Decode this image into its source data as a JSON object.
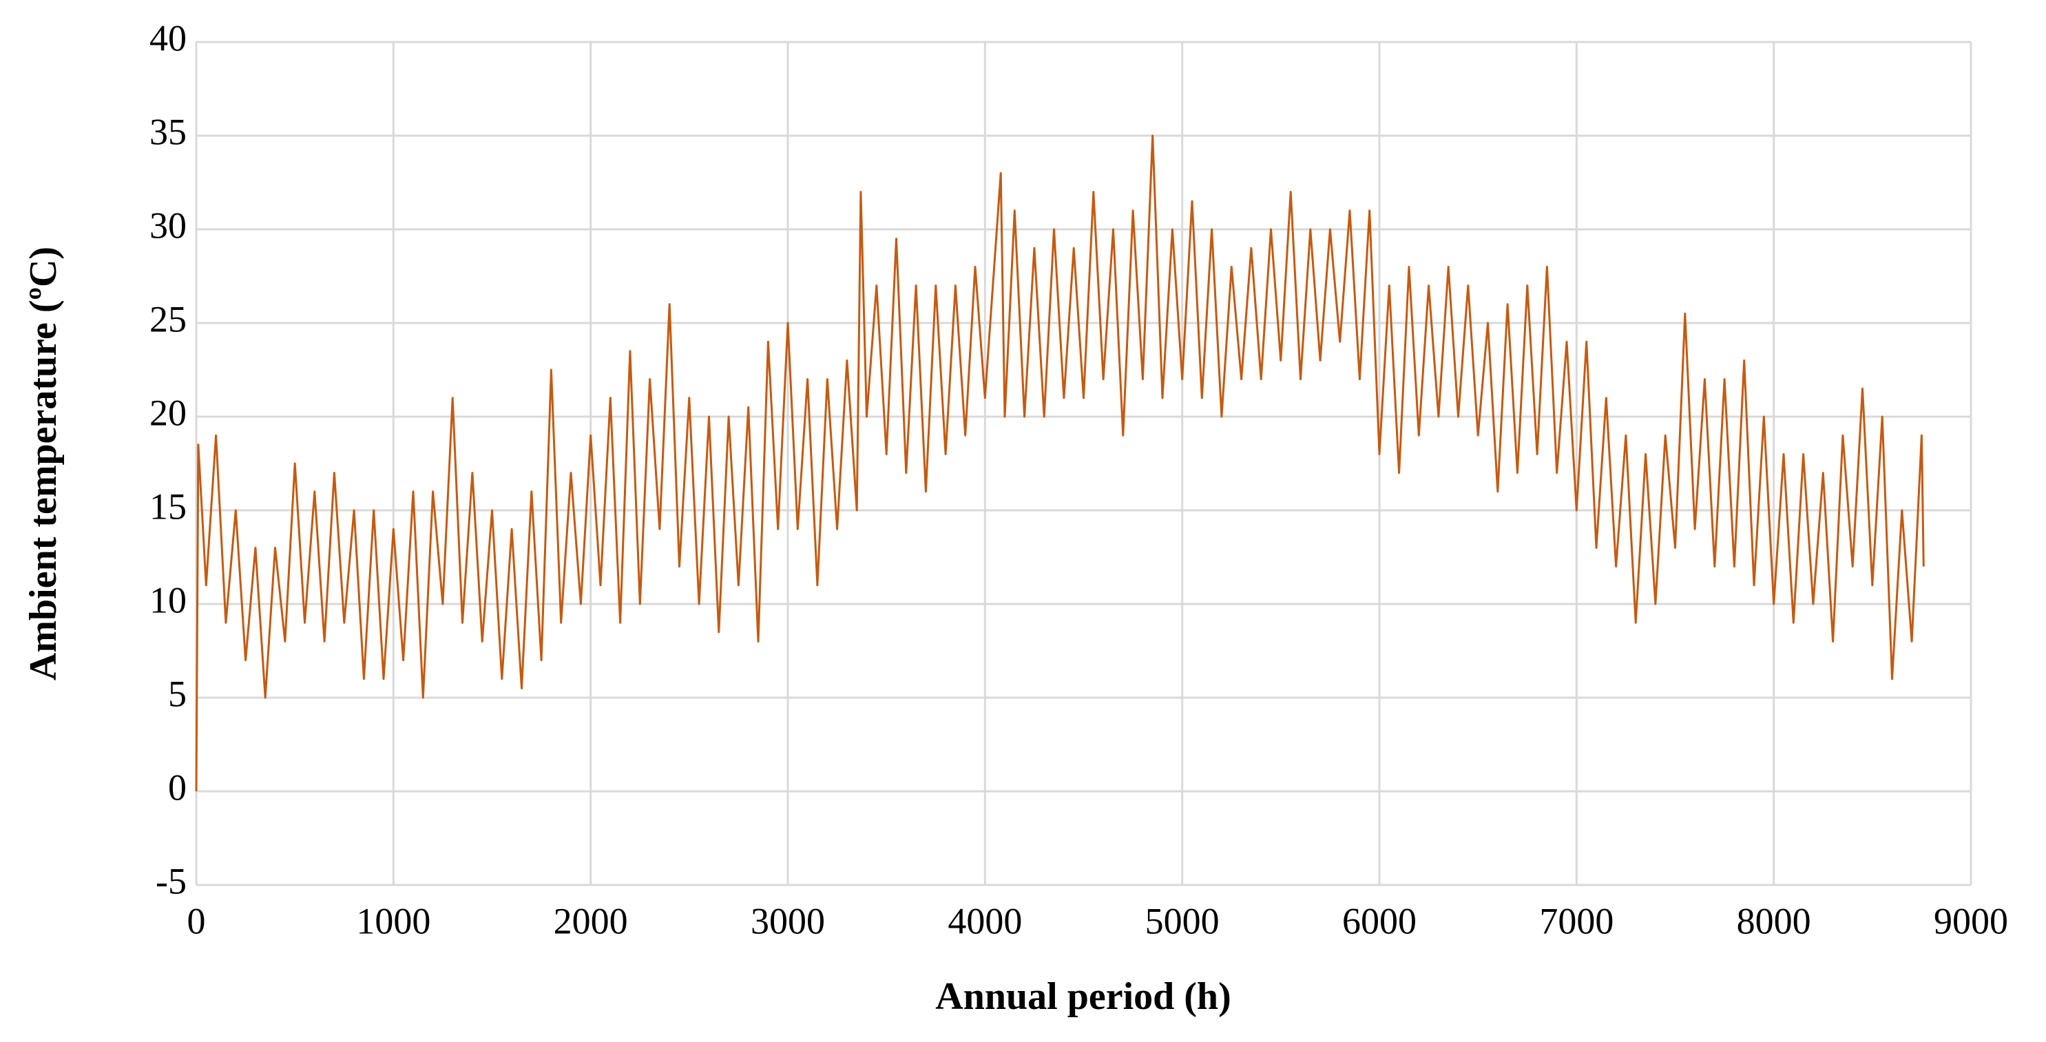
{
  "chart_data": {
    "type": "line",
    "xlabel": "Annual period (h)",
    "ylabel": "Ambient temperature (ºC)",
    "x": [
      0,
      10,
      50,
      100,
      150,
      200,
      250,
      300,
      350,
      400,
      450,
      500,
      550,
      600,
      650,
      700,
      750,
      800,
      850,
      900,
      950,
      1000,
      1050,
      1100,
      1150,
      1200,
      1250,
      1300,
      1350,
      1400,
      1450,
      1500,
      1550,
      1600,
      1650,
      1700,
      1750,
      1800,
      1850,
      1900,
      1950,
      2000,
      2050,
      2100,
      2150,
      2200,
      2250,
      2300,
      2350,
      2400,
      2450,
      2500,
      2550,
      2600,
      2650,
      2700,
      2750,
      2800,
      2850,
      2900,
      2950,
      3000,
      3050,
      3100,
      3150,
      3200,
      3250,
      3300,
      3350,
      3370,
      3400,
      3450,
      3500,
      3550,
      3600,
      3650,
      3700,
      3750,
      3800,
      3850,
      3900,
      3950,
      4000,
      4080,
      4100,
      4150,
      4200,
      4250,
      4300,
      4350,
      4400,
      4450,
      4500,
      4550,
      4600,
      4650,
      4700,
      4750,
      4800,
      4850,
      4900,
      4950,
      5000,
      5050,
      5100,
      5150,
      5200,
      5250,
      5300,
      5350,
      5400,
      5450,
      5500,
      5550,
      5600,
      5650,
      5700,
      5750,
      5800,
      5850,
      5900,
      5950,
      6000,
      6050,
      6100,
      6150,
      6200,
      6250,
      6300,
      6350,
      6400,
      6450,
      6500,
      6550,
      6600,
      6650,
      6700,
      6750,
      6800,
      6850,
      6900,
      6950,
      7000,
      7050,
      7100,
      7150,
      7200,
      7250,
      7300,
      7350,
      7400,
      7450,
      7500,
      7550,
      7600,
      7650,
      7700,
      7750,
      7800,
      7850,
      7900,
      7950,
      8000,
      8050,
      8100,
      8150,
      8200,
      8250,
      8300,
      8350,
      8400,
      8450,
      8500,
      8550,
      8600,
      8650,
      8700,
      8750,
      8760
    ],
    "series": [
      {
        "name": "Ambient temperature",
        "color": "#c55a11",
        "values": [
          0,
          18.5,
          11,
          19,
          9,
          15,
          7,
          13,
          5,
          13,
          8,
          17.5,
          9,
          16,
          8,
          17,
          9,
          15,
          6,
          15,
          6,
          14,
          7,
          16,
          5,
          16,
          10,
          21,
          9,
          17,
          8,
          15,
          6,
          14,
          5.5,
          16,
          7,
          22.5,
          9,
          17,
          10,
          19,
          11,
          21,
          9,
          23.5,
          10,
          22,
          14,
          26,
          12,
          21,
          10,
          20,
          8.5,
          20,
          11,
          20.5,
          8,
          24,
          14,
          25,
          14,
          22,
          11,
          22,
          14,
          23,
          15,
          32,
          20,
          27,
          18,
          29.5,
          17,
          27,
          16,
          27,
          18,
          27,
          19,
          28,
          21,
          33,
          20,
          31,
          20,
          29,
          20,
          30,
          21,
          29,
          21,
          32,
          22,
          30,
          19,
          31,
          22,
          35,
          21,
          30,
          22,
          31.5,
          21,
          30,
          20,
          28,
          22,
          29,
          22,
          30,
          23,
          32,
          22,
          30,
          23,
          30,
          24,
          31,
          22,
          31,
          18,
          27,
          17,
          28,
          19,
          27,
          20,
          28,
          20,
          27,
          19,
          25,
          16,
          26,
          17,
          27,
          18,
          28,
          17,
          24,
          15,
          24,
          13,
          21,
          12,
          19,
          9,
          18,
          10,
          19,
          13,
          25.5,
          14,
          22,
          12,
          22,
          12,
          23,
          11,
          20,
          10,
          18,
          9,
          18,
          10,
          17,
          8,
          19,
          12,
          21.5,
          11,
          20,
          6,
          15,
          8,
          19,
          12
        ]
      }
    ],
    "xlim": [
      0,
      9000
    ],
    "xticks": [
      0,
      1000,
      2000,
      3000,
      4000,
      5000,
      6000,
      7000,
      8000,
      9000
    ],
    "ylim": [
      -5,
      40
    ],
    "yticks": [
      -5,
      0,
      5,
      10,
      15,
      20,
      25,
      30,
      35,
      40
    ],
    "grid": true
  }
}
